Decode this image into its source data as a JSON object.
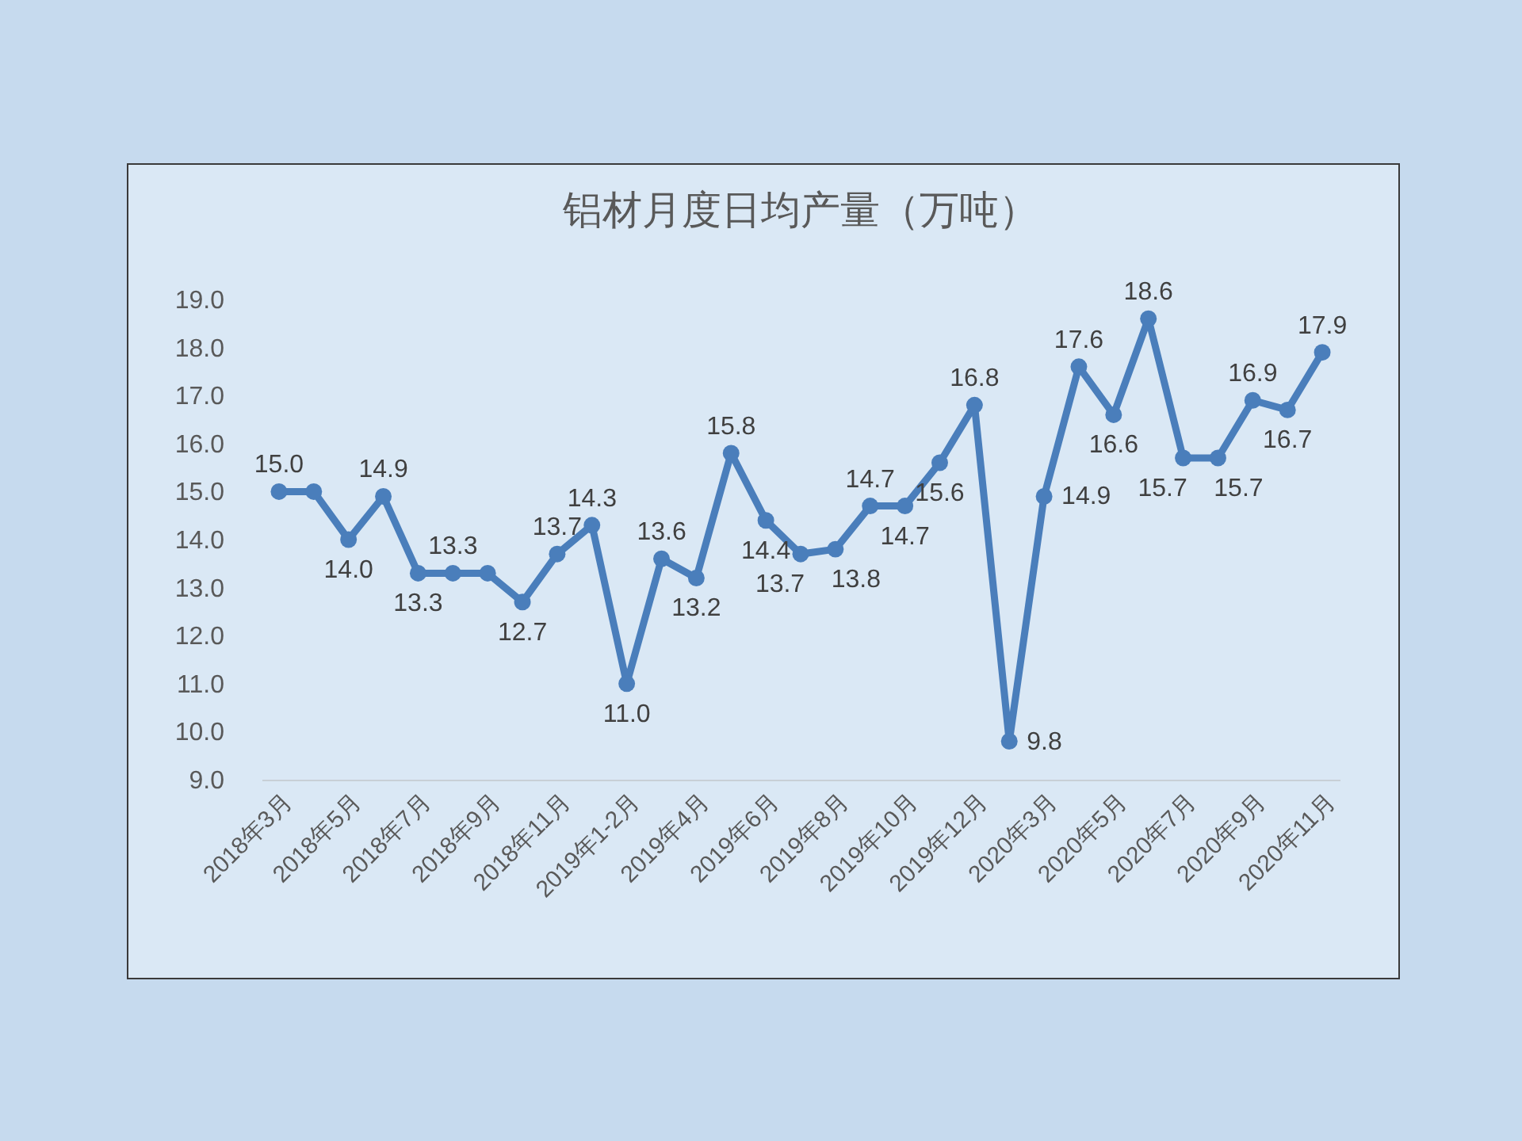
{
  "chart_data": {
    "type": "line",
    "title": "铝材月度日均产量（万吨）",
    "categories": [
      "2018年3月",
      null,
      "2018年5月",
      null,
      "2018年7月",
      null,
      "2018年9月",
      null,
      "2018年11月",
      null,
      "2019年1-2月",
      null,
      "2019年4月",
      null,
      "2019年6月",
      null,
      "2019年8月",
      null,
      "2019年10月",
      null,
      "2019年12月",
      null,
      "2020年3月",
      null,
      "2020年5月",
      null,
      "2020年7月",
      null,
      "2020年9月",
      null,
      "2020年11月"
    ],
    "series": [
      {
        "color": "#4a7ebb",
        "values": [
          15.0,
          15.0,
          14.0,
          14.9,
          13.3,
          13.3,
          13.3,
          12.7,
          13.7,
          14.3,
          11.0,
          13.6,
          13.2,
          15.8,
          14.4,
          13.7,
          13.8,
          14.7,
          14.7,
          15.6,
          16.8,
          9.8,
          14.9,
          17.6,
          16.6,
          18.6,
          15.7,
          15.7,
          16.9,
          16.7,
          17.9
        ],
        "value_labels": [
          "15.0",
          null,
          "14.0",
          "14.9",
          "13.3",
          "13.3",
          null,
          "12.7",
          "13.7",
          "14.3",
          "11.0",
          "13.6",
          "13.2",
          "15.8",
          "14.4",
          "13.7",
          "13.8",
          "14.7",
          "14.7",
          "15.6",
          "16.8",
          "9.8",
          "14.9",
          "17.6",
          "16.6",
          "18.6",
          "15.7",
          "15.7",
          "16.9",
          "16.7",
          "17.9"
        ]
      }
    ],
    "ylim": [
      9,
      19
    ],
    "yticks": [
      {
        "value": 9,
        "label": "9.0"
      },
      {
        "value": 10,
        "label": "10.0"
      },
      {
        "value": 11,
        "label": "11.0"
      },
      {
        "value": 12,
        "label": "12.0"
      },
      {
        "value": 13,
        "label": "13.0"
      },
      {
        "value": 14,
        "label": "14.0"
      },
      {
        "value": 15,
        "label": "15.0"
      },
      {
        "value": 16,
        "label": "16.0"
      },
      {
        "value": 17,
        "label": "17.0"
      },
      {
        "value": 18,
        "label": "18.0"
      },
      {
        "value": 19,
        "label": "19.0"
      }
    ],
    "marker": "circle",
    "line_style": "solid"
  }
}
